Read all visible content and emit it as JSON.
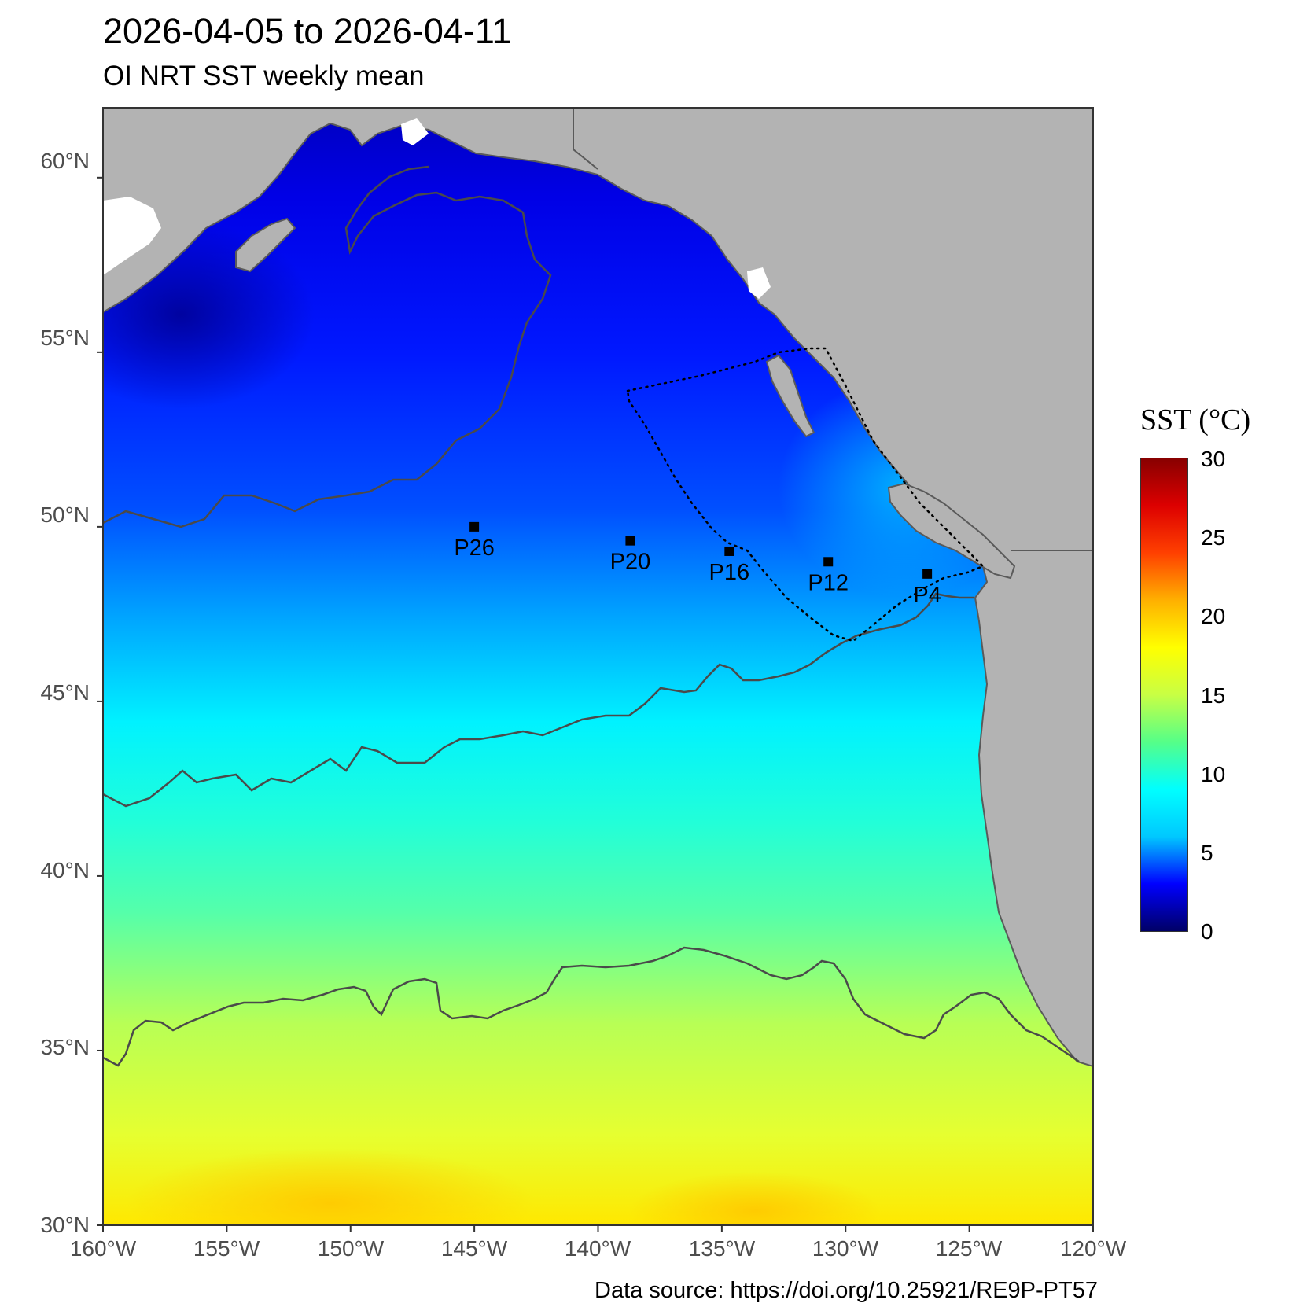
{
  "header": {
    "title": "2026-04-05 to 2026-04-11",
    "subtitle": "OI NRT SST weekly mean"
  },
  "footer": {
    "source": "Data source: https://doi.org/10.25921/RE9P-PT57"
  },
  "map": {
    "lon_range": [
      -160,
      -120
    ],
    "lat_range": [
      30,
      62
    ],
    "y_ticks": [
      "30°N",
      "35°N",
      "40°N",
      "45°N",
      "50°N",
      "55°N",
      "60°N"
    ],
    "x_ticks": [
      "160°W",
      "155°W",
      "150°W",
      "145°W",
      "140°W",
      "135°W",
      "130°W",
      "125°W",
      "120°W"
    ],
    "stations": [
      {
        "label": "P26",
        "lon": -145.0,
        "lat": 50.0
      },
      {
        "label": "P20",
        "lon": -138.7,
        "lat": 49.6
      },
      {
        "label": "P16",
        "lon": -134.7,
        "lat": 49.3
      },
      {
        "label": "P12",
        "lon": -130.7,
        "lat": 49.0
      },
      {
        "label": "P4",
        "lon": -126.7,
        "lat": 48.65
      }
    ],
    "colors": {
      "land": "#b3b3b3",
      "coast": "#5a5a5a",
      "contour": "#4a4a4a"
    }
  },
  "legend": {
    "title": "SST (°C)",
    "ticks": [
      "0",
      "5",
      "10",
      "15",
      "20",
      "25",
      "30"
    ],
    "range": [
      0,
      30
    ],
    "colors": [
      "#000066",
      "#0000ff",
      "#00c8ff",
      "#00ffff",
      "#55ff88",
      "#c8ff44",
      "#ffff00",
      "#ffb000",
      "#ff4000",
      "#dd0000",
      "#880000"
    ]
  }
}
